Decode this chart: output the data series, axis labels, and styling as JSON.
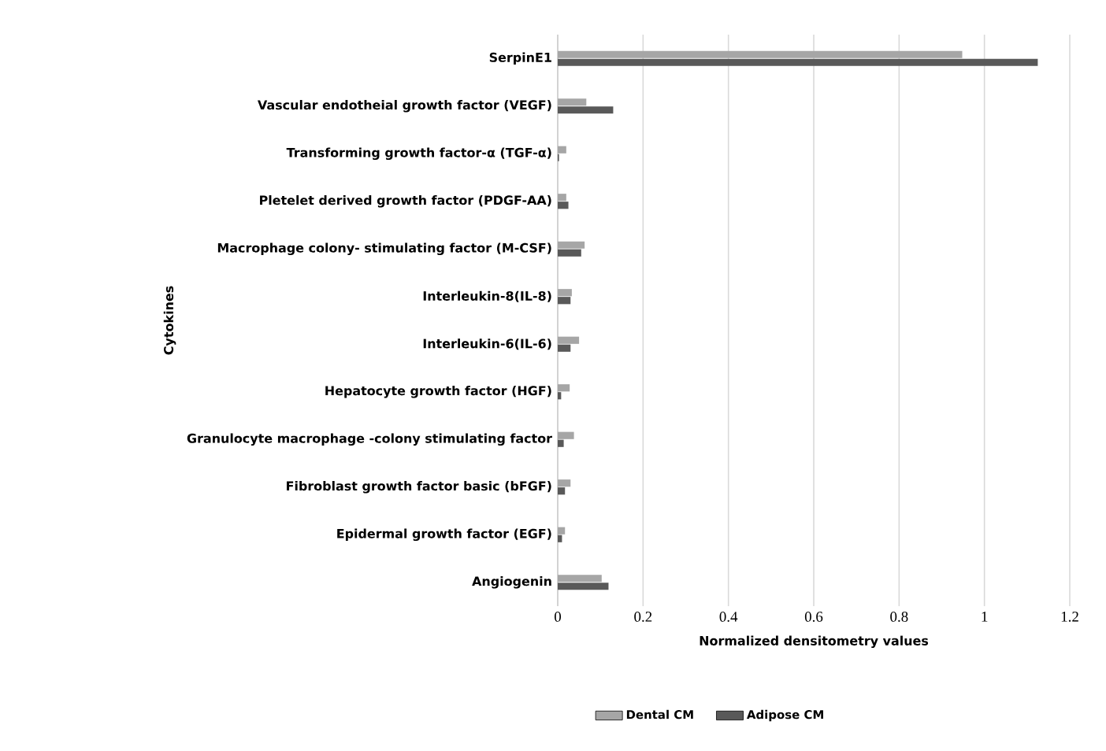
{
  "chart_data": {
    "type": "bar",
    "orientation": "horizontal",
    "xlabel": "Normalized densitometry values",
    "ylabel": "Cytokines",
    "categories": [
      "SerpinE1",
      "Vascular endotheial growth factor (VEGF)",
      "Transforming growth factor-α (TGF-α)",
      "Pletelet derived growth factor (PDGF-AA)",
      "Macrophage colony- stimulating factor (M-CSF)",
      "Interleukin-8(IL-8)",
      "Interleukin-6(IL-6)",
      "Hepatocyte growth factor (HGF)",
      "Granulocyte macrophage -colony stimulating factor",
      "Fibroblast growth factor basic (bFGF)",
      "Epidermal growth factor (EGF)",
      "Angiogenin"
    ],
    "series": [
      {
        "name": "Dental CM",
        "color": "#a6a6a6",
        "values": [
          0.948,
          0.067,
          0.02,
          0.02,
          0.063,
          0.033,
          0.05,
          0.028,
          0.038,
          0.03,
          0.017,
          0.103
        ]
      },
      {
        "name": "Adipose CM",
        "color": "#595959",
        "values": [
          1.125,
          0.13,
          0.003,
          0.025,
          0.055,
          0.03,
          0.03,
          0.008,
          0.014,
          0.017,
          0.01,
          0.119
        ]
      }
    ],
    "xlim": [
      0,
      1.2
    ],
    "xticks": [
      0,
      0.2,
      0.4,
      0.6,
      0.8,
      1,
      1.2
    ],
    "grid": "x",
    "legend": "bottom"
  }
}
